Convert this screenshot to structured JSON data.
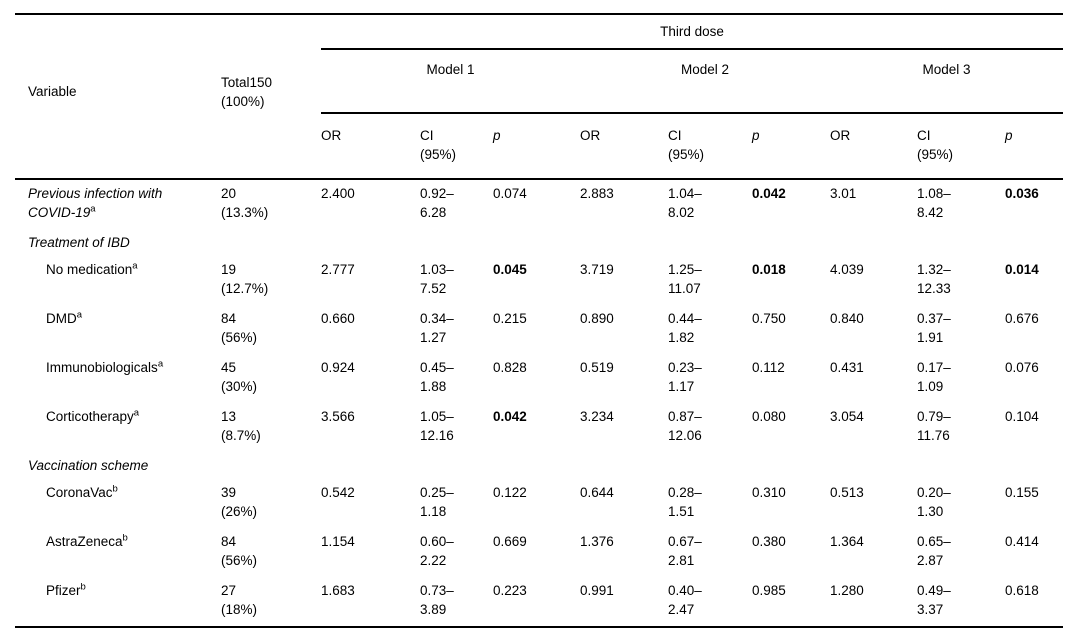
{
  "table": {
    "title_group": "Third dose",
    "col_headers": {
      "variable": "Variable",
      "total": "Total150",
      "total_pct": "(100%)",
      "models": [
        "Model 1",
        "Model 2",
        "Model 3"
      ],
      "or": "OR",
      "ci": "CI",
      "ci_pct": "(95%)",
      "p": "p"
    },
    "rows": [
      {
        "type": "data",
        "label": "Previous infection with COVID-19",
        "sup": "a",
        "italic": true,
        "indent": false,
        "total": "20",
        "total_pct": "(13.3%)",
        "models": [
          {
            "or": "2.400",
            "ci1": "0.92–",
            "ci2": "6.28",
            "p": "0.074",
            "p_bold": false
          },
          {
            "or": "2.883",
            "ci1": "1.04–",
            "ci2": "8.02",
            "p": "0.042",
            "p_bold": true
          },
          {
            "or": "3.01",
            "ci1": "1.08–",
            "ci2": "8.42",
            "p": "0.036",
            "p_bold": true
          }
        ]
      },
      {
        "type": "section",
        "label": "Treatment of IBD"
      },
      {
        "type": "data",
        "label": "No medication",
        "sup": "a",
        "italic": false,
        "indent": true,
        "total": "19",
        "total_pct": "(12.7%)",
        "models": [
          {
            "or": "2.777",
            "ci1": "1.03–",
            "ci2": "7.52",
            "p": "0.045",
            "p_bold": true
          },
          {
            "or": "3.719",
            "ci1": "1.25–",
            "ci2": "11.07",
            "p": "0.018",
            "p_bold": true
          },
          {
            "or": "4.039",
            "ci1": "1.32–",
            "ci2": "12.33",
            "p": "0.014",
            "p_bold": true
          }
        ]
      },
      {
        "type": "data",
        "label": "DMD",
        "sup": "a",
        "italic": false,
        "indent": true,
        "total": "84",
        "total_pct": "(56%)",
        "models": [
          {
            "or": "0.660",
            "ci1": "0.34–",
            "ci2": "1.27",
            "p": "0.215",
            "p_bold": false
          },
          {
            "or": "0.890",
            "ci1": "0.44–",
            "ci2": "1.82",
            "p": "0.750",
            "p_bold": false
          },
          {
            "or": "0.840",
            "ci1": "0.37–",
            "ci2": "1.91",
            "p": "0.676",
            "p_bold": false
          }
        ]
      },
      {
        "type": "data",
        "label": "Immunobiologicals",
        "sup": "a",
        "italic": false,
        "indent": true,
        "total": "45",
        "total_pct": "(30%)",
        "models": [
          {
            "or": "0.924",
            "ci1": "0.45–",
            "ci2": "1.88",
            "p": "0.828",
            "p_bold": false
          },
          {
            "or": "0.519",
            "ci1": "0.23–",
            "ci2": "1.17",
            "p": "0.112",
            "p_bold": false
          },
          {
            "or": "0.431",
            "ci1": "0.17–",
            "ci2": "1.09",
            "p": "0.076",
            "p_bold": false
          }
        ]
      },
      {
        "type": "data",
        "label": "Corticotherapy",
        "sup": "a",
        "italic": false,
        "indent": true,
        "total": "13",
        "total_pct": "(8.7%)",
        "models": [
          {
            "or": "3.566",
            "ci1": "1.05–",
            "ci2": "12.16",
            "p": "0.042",
            "p_bold": true
          },
          {
            "or": "3.234",
            "ci1": "0.87–",
            "ci2": "12.06",
            "p": "0.080",
            "p_bold": false
          },
          {
            "or": "3.054",
            "ci1": "0.79–",
            "ci2": "11.76",
            "p": "0.104",
            "p_bold": false
          }
        ]
      },
      {
        "type": "section",
        "label": "Vaccination scheme"
      },
      {
        "type": "data",
        "label": "CoronaVac",
        "sup": "b",
        "italic": false,
        "indent": true,
        "total": "39",
        "total_pct": "(26%)",
        "models": [
          {
            "or": "0.542",
            "ci1": "0.25–",
            "ci2": "1.18",
            "p": "0.122",
            "p_bold": false
          },
          {
            "or": "0.644",
            "ci1": "0.28–",
            "ci2": "1.51",
            "p": "0.310",
            "p_bold": false
          },
          {
            "or": "0.513",
            "ci1": "0.20–",
            "ci2": "1.30",
            "p": "0.155",
            "p_bold": false
          }
        ]
      },
      {
        "type": "data",
        "label": "AstraZeneca",
        "sup": "b",
        "italic": false,
        "indent": true,
        "total": "84",
        "total_pct": "(56%)",
        "models": [
          {
            "or": "1.154",
            "ci1": "0.60–",
            "ci2": "2.22",
            "p": "0.669",
            "p_bold": false
          },
          {
            "or": "1.376",
            "ci1": "0.67–",
            "ci2": "2.81",
            "p": "0.380",
            "p_bold": false
          },
          {
            "or": "1.364",
            "ci1": "0.65–",
            "ci2": "2.87",
            "p": "0.414",
            "p_bold": false
          }
        ]
      },
      {
        "type": "data",
        "label": "Pfizer",
        "sup": "b",
        "italic": false,
        "indent": true,
        "total": "27",
        "total_pct": "(18%)",
        "models": [
          {
            "or": "1.683",
            "ci1": "0.73–",
            "ci2": "3.89",
            "p": "0.223",
            "p_bold": false
          },
          {
            "or": "0.991",
            "ci1": "0.40–",
            "ci2": "2.47",
            "p": "0.985",
            "p_bold": false
          },
          {
            "or": "1.280",
            "ci1": "0.49–",
            "ci2": "3.37",
            "p": "0.618",
            "p_bold": false
          }
        ]
      }
    ]
  }
}
